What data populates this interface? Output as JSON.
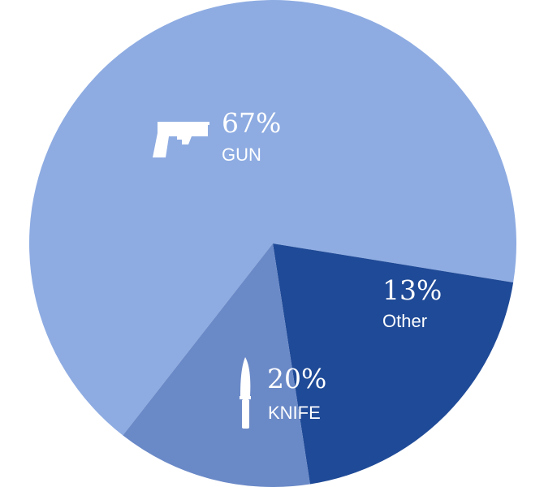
{
  "chart_data": {
    "type": "pie",
    "slices": [
      {
        "label": "GUN",
        "percent_text": "67%",
        "value": 67,
        "color": "#8EACE2",
        "icon": "gun-icon"
      },
      {
        "label": "KNIFE",
        "percent_text": "20%",
        "value": 20,
        "color": "#1F4A97",
        "icon": "knife-icon"
      },
      {
        "label": "Other",
        "percent_text": "13%",
        "value": 13,
        "color": "#6A89C7",
        "icon": ""
      }
    ]
  }
}
